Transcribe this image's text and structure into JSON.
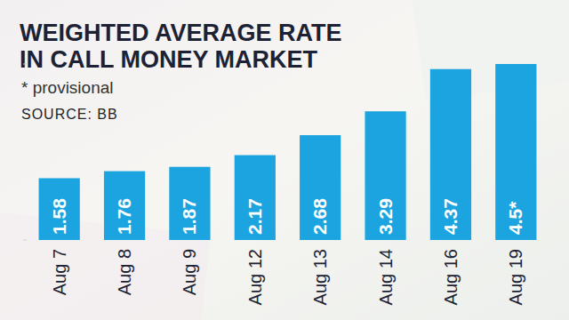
{
  "chart_data": {
    "type": "bar",
    "title": "WEIGHTED AVERAGE RATE\nIN CALL MONEY MARKET",
    "subtitle": "* provisional",
    "annotations": [
      "SOURCE: BB"
    ],
    "categories": [
      "Aug 7",
      "Aug 8",
      "Aug 9",
      "Aug 12",
      "Aug 13",
      "Aug 14",
      "Aug 16",
      "Aug 19"
    ],
    "values": [
      1.58,
      1.76,
      1.87,
      2.17,
      2.68,
      3.29,
      4.37,
      4.5
    ],
    "value_labels": [
      "1.58",
      "1.76",
      "1.87",
      "2.17",
      "2.68",
      "3.29",
      "4.37",
      "4.5*"
    ],
    "color": "#1ba4df",
    "ylim": [
      0,
      4.5
    ],
    "yticks": [
      0,
      4.5
    ],
    "grid": false,
    "data_labels": true,
    "tick_labels": "x"
  }
}
